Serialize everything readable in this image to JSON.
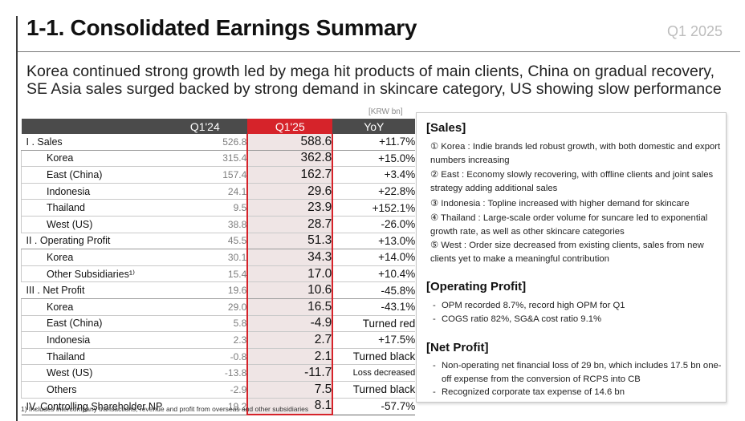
{
  "header": {
    "title": "1-1. Consolidated Earnings Summary",
    "period": "Q1 2025"
  },
  "subtitle": {
    "line1": "Korea continued strong growth led by mega hit products of main clients, China on gradual recovery,",
    "line2": "SE Asia sales surged backed by strong demand in skincare category, US showing slow performance"
  },
  "unit": "[KRW bn]",
  "table": {
    "columns": [
      "",
      "Q1'24",
      "Q1'25",
      "YoY"
    ],
    "rows": [
      {
        "label": "I . Sales",
        "level": "main",
        "q124": "526.8",
        "q125": "588.6",
        "yoy": "+11.7%"
      },
      {
        "label": "Korea",
        "level": "sub",
        "q124": "315.4",
        "q125": "362.8",
        "yoy": "+15.0%"
      },
      {
        "label": "East (China)",
        "level": "sub",
        "q124": "157.4",
        "q125": "162.7",
        "yoy": "+3.4%"
      },
      {
        "label": "Indonesia",
        "level": "sub",
        "q124": "24.1",
        "q125": "29.6",
        "yoy": "+22.8%"
      },
      {
        "label": "Thailand",
        "level": "sub",
        "q124": "9.5",
        "q125": "23.9",
        "yoy": "+152.1%"
      },
      {
        "label": "West (US)",
        "level": "sub",
        "q124": "38.8",
        "q125": "28.7",
        "yoy": "-26.0%"
      },
      {
        "label": "II . Operating Profit",
        "level": "main",
        "q124": "45.5",
        "q125": "51.3",
        "yoy": "+13.0%"
      },
      {
        "label": "Korea",
        "level": "sub",
        "q124": "30.1",
        "q125": "34.3",
        "yoy": "+14.0%"
      },
      {
        "label": "Other Subsidiaries¹⁾",
        "level": "sub",
        "q124": "15.4",
        "q125": "17.0",
        "yoy": "+10.4%"
      },
      {
        "label": "III . Net Profit",
        "level": "main",
        "q124": "19.6",
        "q125": "10.6",
        "yoy": "-45.8%"
      },
      {
        "label": "Korea",
        "level": "sub",
        "q124": "29.0",
        "q125": "16.5",
        "yoy": "-43.1%"
      },
      {
        "label": "East (China)",
        "level": "sub",
        "q124": "5.8",
        "q125": "-4.9",
        "yoy": "Turned red"
      },
      {
        "label": "Indonesia",
        "level": "sub",
        "q124": "2.3",
        "q125": "2.7",
        "yoy": "+17.5%"
      },
      {
        "label": "Thailand",
        "level": "sub",
        "q124": "-0.8",
        "q125": "2.1",
        "yoy": "Turned black"
      },
      {
        "label": "West (US)",
        "level": "sub",
        "q124": "-13.8",
        "q125": "-11.7",
        "yoy": "Loss decreased"
      },
      {
        "label": "Others",
        "level": "sub",
        "q124": "-2.9",
        "q125": "7.5",
        "yoy": "Turned black"
      },
      {
        "label": "IV. Controlling Shareholder NP",
        "level": "main",
        "q124": "19.2",
        "q125": "8.1",
        "yoy": "-57.7%"
      }
    ]
  },
  "footnote": "1) Includes intercompany transactions, revenue and profit from overseas and other subsidiaries",
  "panel": {
    "sales": {
      "title": "[Sales]",
      "items": [
        {
          "key": "① Korea :",
          "text": "Indie brands led robust growth, with both domestic and export numbers increasing"
        },
        {
          "key": "② East :",
          "text": "Economy slowly recovering, with offline clients and joint sales strategy adding additional sales"
        },
        {
          "key": "③ Indonesia :",
          "text": "Topline increased with higher demand for skincare"
        },
        {
          "key": "④ Thailand :",
          "text": "Large-scale order volume for suncare led to exponential growth rate, as well as other skincare categories"
        },
        {
          "key": "⑤ West :",
          "text": "Order size decreased from existing clients, sales from new clients yet to make a meaningful contribution"
        }
      ]
    },
    "operating_profit": {
      "title": "[Operating Profit]",
      "items": [
        "OPM recorded 8.7%, record high OPM for Q1",
        "COGS ratio 82%, SG&A cost ratio 9.1%"
      ]
    },
    "net_profit": {
      "title": "[Net Profit]",
      "items": [
        "Non-operating net financial loss of 29 bn, which includes 17.5 bn one-off expense from the conversion of RCPS into CB",
        "Recognized corporate tax expense of 14.6 bn"
      ]
    }
  }
}
